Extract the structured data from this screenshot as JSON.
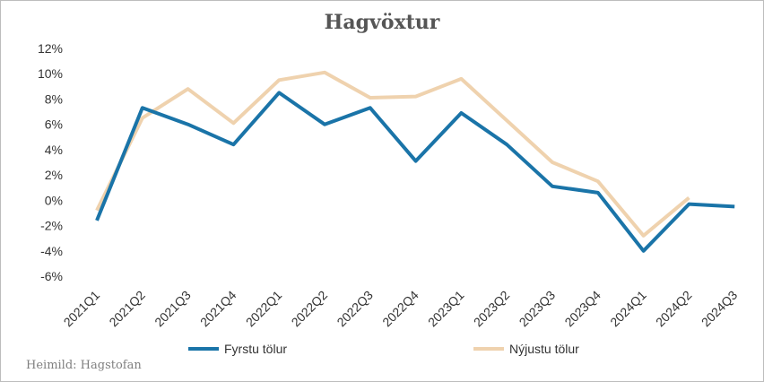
{
  "chart_data": {
    "type": "line",
    "title": "Hagvöxtur",
    "xlabel": "",
    "ylabel": "",
    "ylim": [
      -6,
      12
    ],
    "yticks": [
      "-6%",
      "-4%",
      "-2%",
      "0%",
      "2%",
      "4%",
      "6%",
      "8%",
      "10%",
      "12%"
    ],
    "grid": false,
    "legend_position": "bottom",
    "categories": [
      "2021Q1",
      "2021Q2",
      "2021Q3",
      "2021Q4",
      "2022Q1",
      "2022Q2",
      "2022Q3",
      "2022Q4",
      "2023Q1",
      "2023Q2",
      "2023Q3",
      "2023Q4",
      "2024Q1",
      "2024Q2",
      "2024Q3"
    ],
    "series": [
      {
        "name": "Fyrstu tölur",
        "color": "#1a74a8",
        "values": [
          -1.6,
          7.3,
          6.0,
          4.4,
          8.5,
          6.0,
          7.3,
          3.1,
          6.9,
          4.4,
          1.1,
          0.6,
          -4.0,
          -0.3,
          -0.5
        ]
      },
      {
        "name": "Nýjustu tölur",
        "color": "#efd2ae",
        "values": [
          -0.8,
          6.5,
          8.8,
          6.1,
          9.5,
          10.1,
          8.1,
          8.2,
          9.6,
          6.3,
          3.0,
          1.5,
          -2.8,
          0.2,
          null
        ]
      }
    ]
  },
  "source": "Heimild: Hagstofan"
}
